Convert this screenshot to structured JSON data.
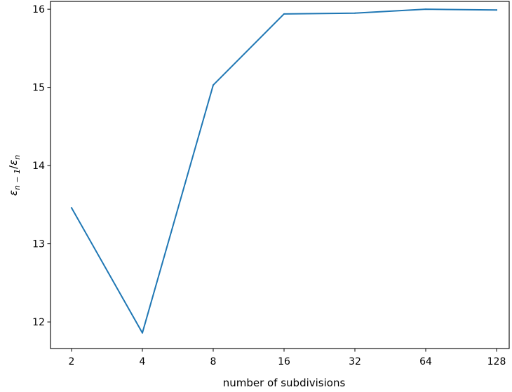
{
  "chart_data": {
    "type": "line",
    "title": "",
    "xlabel": "number of subdivisions",
    "ylabel_parts": {
      "eps1": "ε",
      "sub1": "n − 1",
      "slash": "/",
      "eps2": "ε",
      "sub2": "n"
    },
    "x_scale": "log2",
    "x": [
      2,
      4,
      8,
      16,
      32,
      64,
      128
    ],
    "x_tick_labels": [
      "2",
      "4",
      "8",
      "16",
      "32",
      "64",
      "128"
    ],
    "ylim": [
      11.66,
      16.1
    ],
    "y_ticks": [
      12,
      13,
      14,
      15,
      16
    ],
    "y_tick_labels": [
      "12",
      "13",
      "14",
      "15",
      "16"
    ],
    "grid": false,
    "series": [
      {
        "color": "#1f77b4",
        "values": [
          13.46,
          11.86,
          15.03,
          15.94,
          15.95,
          16.0,
          15.99
        ]
      }
    ]
  }
}
